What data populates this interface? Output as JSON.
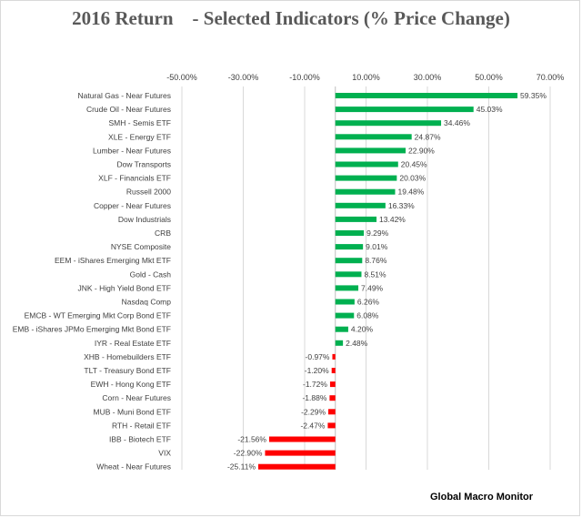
{
  "chart_data": {
    "type": "bar",
    "orientation": "horizontal",
    "title": "2016 Return    - Selected Indicators (% Price Change)",
    "source": "Global Macro Monitor",
    "xlim": [
      -50,
      70
    ],
    "tick_values": [
      -50,
      -30,
      -10,
      10,
      30,
      50,
      70
    ],
    "tick_labels": [
      "-50.00%",
      "-30.00%",
      "-10.00%",
      "10.00%",
      "30.00%",
      "50.00%",
      "70.00%"
    ],
    "axis_position": "top",
    "grid": true,
    "colors": {
      "positive": "#00b050",
      "negative": "#ff0000"
    },
    "categories": [
      "Natural Gas - Near Futures",
      "Crude Oil - Near Futures",
      "SMH - Semis ETF",
      "XLE - Energy ETF",
      "Lumber - Near Futures",
      "Dow Transports",
      "XLF - Financials ETF",
      "Russell 2000",
      "Copper - Near Futures",
      "Dow Industrials",
      "CRB",
      "NYSE Composite",
      "EEM - iShares Emerging Mkt ETF",
      "Gold - Cash",
      "JNK - High Yield Bond ETF",
      "Nasdaq Comp",
      "EMCB - WT Emerging Mkt Corp Bond ETF",
      "EMB - iShares JPMo Emerging Mkt Bond ETF",
      "IYR - Real Estate ETF",
      "XHB - Homebuilders ETF",
      "TLT - Treasury Bond ETF",
      "EWH - Hong Kong ETF",
      "Corn - Near Futures",
      "MUB - Muni Bond ETF",
      "RTH - Retail ETF",
      "IBB - Biotech ETF",
      "VIX",
      "Wheat - Near Futures"
    ],
    "values": [
      59.35,
      45.03,
      34.46,
      24.87,
      22.9,
      20.45,
      20.03,
      19.48,
      16.33,
      13.42,
      9.29,
      9.01,
      8.76,
      8.51,
      7.49,
      6.26,
      6.08,
      4.2,
      2.48,
      -0.97,
      -1.2,
      -1.72,
      -1.88,
      -2.29,
      -2.47,
      -21.56,
      -22.9,
      -25.11
    ],
    "data_labels": [
      "59.35%",
      "45.03%",
      "34.46%",
      "24.87%",
      "22.90%",
      "20.45%",
      "20.03%",
      "19.48%",
      "16.33%",
      "13.42%",
      "9.29%",
      "9.01%",
      "8.76%",
      "8.51%",
      "7.49%",
      "6.26%",
      "6.08%",
      "4.20%",
      "2.48%",
      "-0.97%",
      "-1.20%",
      "-1.72%",
      "-1.88%",
      "-2.29%",
      "-2.47%",
      "-21.56%",
      "-22.90%",
      "-25.11%"
    ]
  }
}
